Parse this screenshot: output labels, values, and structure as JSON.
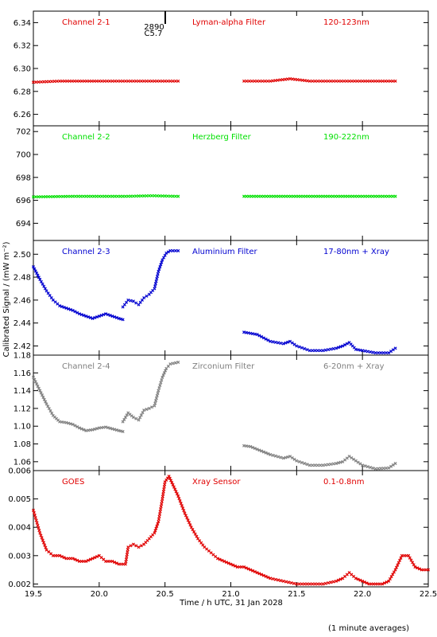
{
  "figure": {
    "ylabel": "Calibrated Signal / (mW m⁻²)",
    "xlabel": "Time / h UTC, 31 Jan 2028",
    "footnote": "(1 minute averages)",
    "top_marker_labels": [
      "2890",
      "C5.7"
    ],
    "x_ticks": [
      "19.5",
      "20.0",
      "20.5",
      "21.0",
      "21.5",
      "22.0",
      "22.5"
    ],
    "colors": {
      "channel_2_1": "#e00000",
      "channel_2_2": "#00e000",
      "channel_2_3": "#0000d0",
      "channel_2_4": "#808080",
      "goes": "#e00000"
    }
  },
  "chart_data": [
    {
      "type": "scatter",
      "channel": "Channel 2-1",
      "filter": "Lyman-alpha Filter",
      "band": "120-123nm",
      "xlim": [
        19.5,
        22.5
      ],
      "ylim": [
        6.25,
        6.35
      ],
      "yticks": [
        "6.26",
        "6.28",
        "6.30",
        "6.32",
        "6.34"
      ],
      "segments": [
        {
          "x": [
            19.5,
            19.7,
            19.85,
            20.0,
            20.2,
            20.4,
            20.6
          ],
          "y": [
            6.288,
            6.289,
            6.289,
            6.289,
            6.289,
            6.289,
            6.289
          ]
        },
        {
          "x": [
            21.1,
            21.3,
            21.45,
            21.6,
            21.8,
            22.0,
            22.25
          ],
          "y": [
            6.289,
            6.289,
            6.291,
            6.289,
            6.289,
            6.289,
            6.289
          ]
        }
      ]
    },
    {
      "type": "scatter",
      "channel": "Channel 2-2",
      "filter": "Herzberg Filter",
      "band": "190-222nm",
      "xlim": [
        19.5,
        22.5
      ],
      "ylim": [
        692.5,
        702.5
      ],
      "yticks": [
        "694",
        "696",
        "698",
        "700",
        "702"
      ],
      "segments": [
        {
          "x": [
            19.5,
            19.8,
            20.0,
            20.2,
            20.4,
            20.6
          ],
          "y": [
            696.3,
            696.35,
            696.35,
            696.35,
            696.4,
            696.35
          ]
        },
        {
          "x": [
            21.1,
            21.4,
            21.7,
            22.0,
            22.25
          ],
          "y": [
            696.35,
            696.35,
            696.35,
            696.35,
            696.35
          ]
        }
      ]
    },
    {
      "type": "scatter",
      "channel": "Channel 2-3",
      "filter": "Aluminium Filter",
      "band": "17-80nm + Xray",
      "xlim": [
        19.5,
        22.5
      ],
      "ylim": [
        2.412,
        2.512
      ],
      "yticks": [
        "2.42",
        "2.44",
        "2.46",
        "2.48",
        "2.50"
      ],
      "segments": [
        {
          "x": [
            19.5,
            19.55,
            19.6,
            19.65,
            19.7,
            19.75,
            19.8,
            19.85,
            19.9,
            19.95,
            20.0,
            20.05,
            20.1,
            20.15,
            20.18
          ],
          "y": [
            2.489,
            2.478,
            2.468,
            2.46,
            2.455,
            2.453,
            2.451,
            2.448,
            2.446,
            2.444,
            2.446,
            2.448,
            2.446,
            2.444,
            2.443
          ]
        },
        {
          "x": [
            20.18,
            20.22,
            20.26,
            20.3,
            20.34,
            20.38,
            20.42,
            20.45,
            20.48,
            20.51,
            20.54,
            20.6
          ],
          "y": [
            2.454,
            2.46,
            2.459,
            2.456,
            2.462,
            2.465,
            2.47,
            2.485,
            2.495,
            2.501,
            2.503,
            2.503
          ]
        },
        {
          "x": [
            21.1,
            21.15,
            21.2,
            21.3,
            21.4,
            21.45,
            21.5,
            21.6,
            21.7,
            21.8,
            21.85,
            21.9,
            21.95,
            22.0,
            22.1,
            22.2,
            22.25
          ],
          "y": [
            2.432,
            2.431,
            2.43,
            2.424,
            2.422,
            2.424,
            2.42,
            2.416,
            2.416,
            2.418,
            2.42,
            2.423,
            2.417,
            2.416,
            2.414,
            2.414,
            2.418
          ]
        }
      ]
    },
    {
      "type": "scatter",
      "channel": "Channel 2-4",
      "filter": "Zirconium Filter",
      "band": "6-20nm + Xray",
      "xlim": [
        19.5,
        22.5
      ],
      "ylim": [
        1.05,
        1.18
      ],
      "yticks": [
        "1.06",
        "1.08",
        "1.10",
        "1.12",
        "1.14",
        "1.16",
        "1.18"
      ],
      "segments": [
        {
          "x": [
            19.5,
            19.55,
            19.6,
            19.65,
            19.7,
            19.75,
            19.8,
            19.85,
            19.9,
            19.95,
            20.0,
            20.05,
            20.1,
            20.15,
            20.18
          ],
          "y": [
            1.155,
            1.14,
            1.125,
            1.112,
            1.105,
            1.104,
            1.102,
            1.098,
            1.095,
            1.096,
            1.098,
            1.099,
            1.097,
            1.095,
            1.094
          ]
        },
        {
          "x": [
            20.18,
            20.22,
            20.26,
            20.3,
            20.34,
            20.38,
            20.42,
            20.45,
            20.48,
            20.51,
            20.54,
            20.6
          ],
          "y": [
            1.105,
            1.115,
            1.11,
            1.107,
            1.118,
            1.12,
            1.123,
            1.14,
            1.155,
            1.165,
            1.17,
            1.172
          ]
        },
        {
          "x": [
            21.1,
            21.15,
            21.2,
            21.3,
            21.4,
            21.45,
            21.5,
            21.6,
            21.7,
            21.8,
            21.85,
            21.9,
            21.95,
            22.0,
            22.1,
            22.2,
            22.25
          ],
          "y": [
            1.078,
            1.077,
            1.074,
            1.068,
            1.064,
            1.066,
            1.061,
            1.056,
            1.056,
            1.058,
            1.06,
            1.066,
            1.061,
            1.056,
            1.052,
            1.053,
            1.058
          ]
        }
      ]
    },
    {
      "type": "scatter",
      "channel": "GOES",
      "filter": "Xray Sensor",
      "band": "0.1-0.8nm",
      "xlim": [
        19.5,
        22.5
      ],
      "ylim": [
        0.0019,
        0.006
      ],
      "yticks": [
        "0.002",
        "0.003",
        "0.004",
        "0.005",
        "0.006"
      ],
      "segments": [
        {
          "x": [
            19.5,
            19.55,
            19.6,
            19.65,
            19.7,
            19.75,
            19.8,
            19.85,
            19.9,
            19.95,
            20.0,
            20.05,
            20.1,
            20.15,
            20.2,
            20.22,
            20.26,
            20.3,
            20.34,
            20.38,
            20.42,
            20.45,
            20.48,
            20.5,
            20.53,
            20.56,
            20.6,
            20.65,
            20.7,
            20.75,
            20.8,
            20.85,
            20.9,
            20.95,
            21.0,
            21.05,
            21.1,
            21.15,
            21.2,
            21.3,
            21.4,
            21.5,
            21.6,
            21.7,
            21.8,
            21.85,
            21.9,
            21.95,
            22.0,
            22.05,
            22.1,
            22.15,
            22.2,
            22.25,
            22.3,
            22.35,
            22.4,
            22.45,
            22.5
          ],
          "y": [
            0.0046,
            0.0038,
            0.0032,
            0.003,
            0.003,
            0.0029,
            0.0029,
            0.0028,
            0.0028,
            0.0029,
            0.003,
            0.0028,
            0.0028,
            0.0027,
            0.0027,
            0.0033,
            0.0034,
            0.0033,
            0.0034,
            0.0036,
            0.0038,
            0.0042,
            0.005,
            0.0056,
            0.0058,
            0.0055,
            0.0051,
            0.0045,
            0.004,
            0.0036,
            0.0033,
            0.0031,
            0.0029,
            0.0028,
            0.0027,
            0.0026,
            0.0026,
            0.0025,
            0.0024,
            0.0022,
            0.0021,
            0.002,
            0.002,
            0.002,
            0.0021,
            0.0022,
            0.0024,
            0.0022,
            0.0021,
            0.002,
            0.002,
            0.002,
            0.0021,
            0.0025,
            0.003,
            0.003,
            0.0026,
            0.0025,
            0.0025
          ]
        }
      ]
    }
  ]
}
